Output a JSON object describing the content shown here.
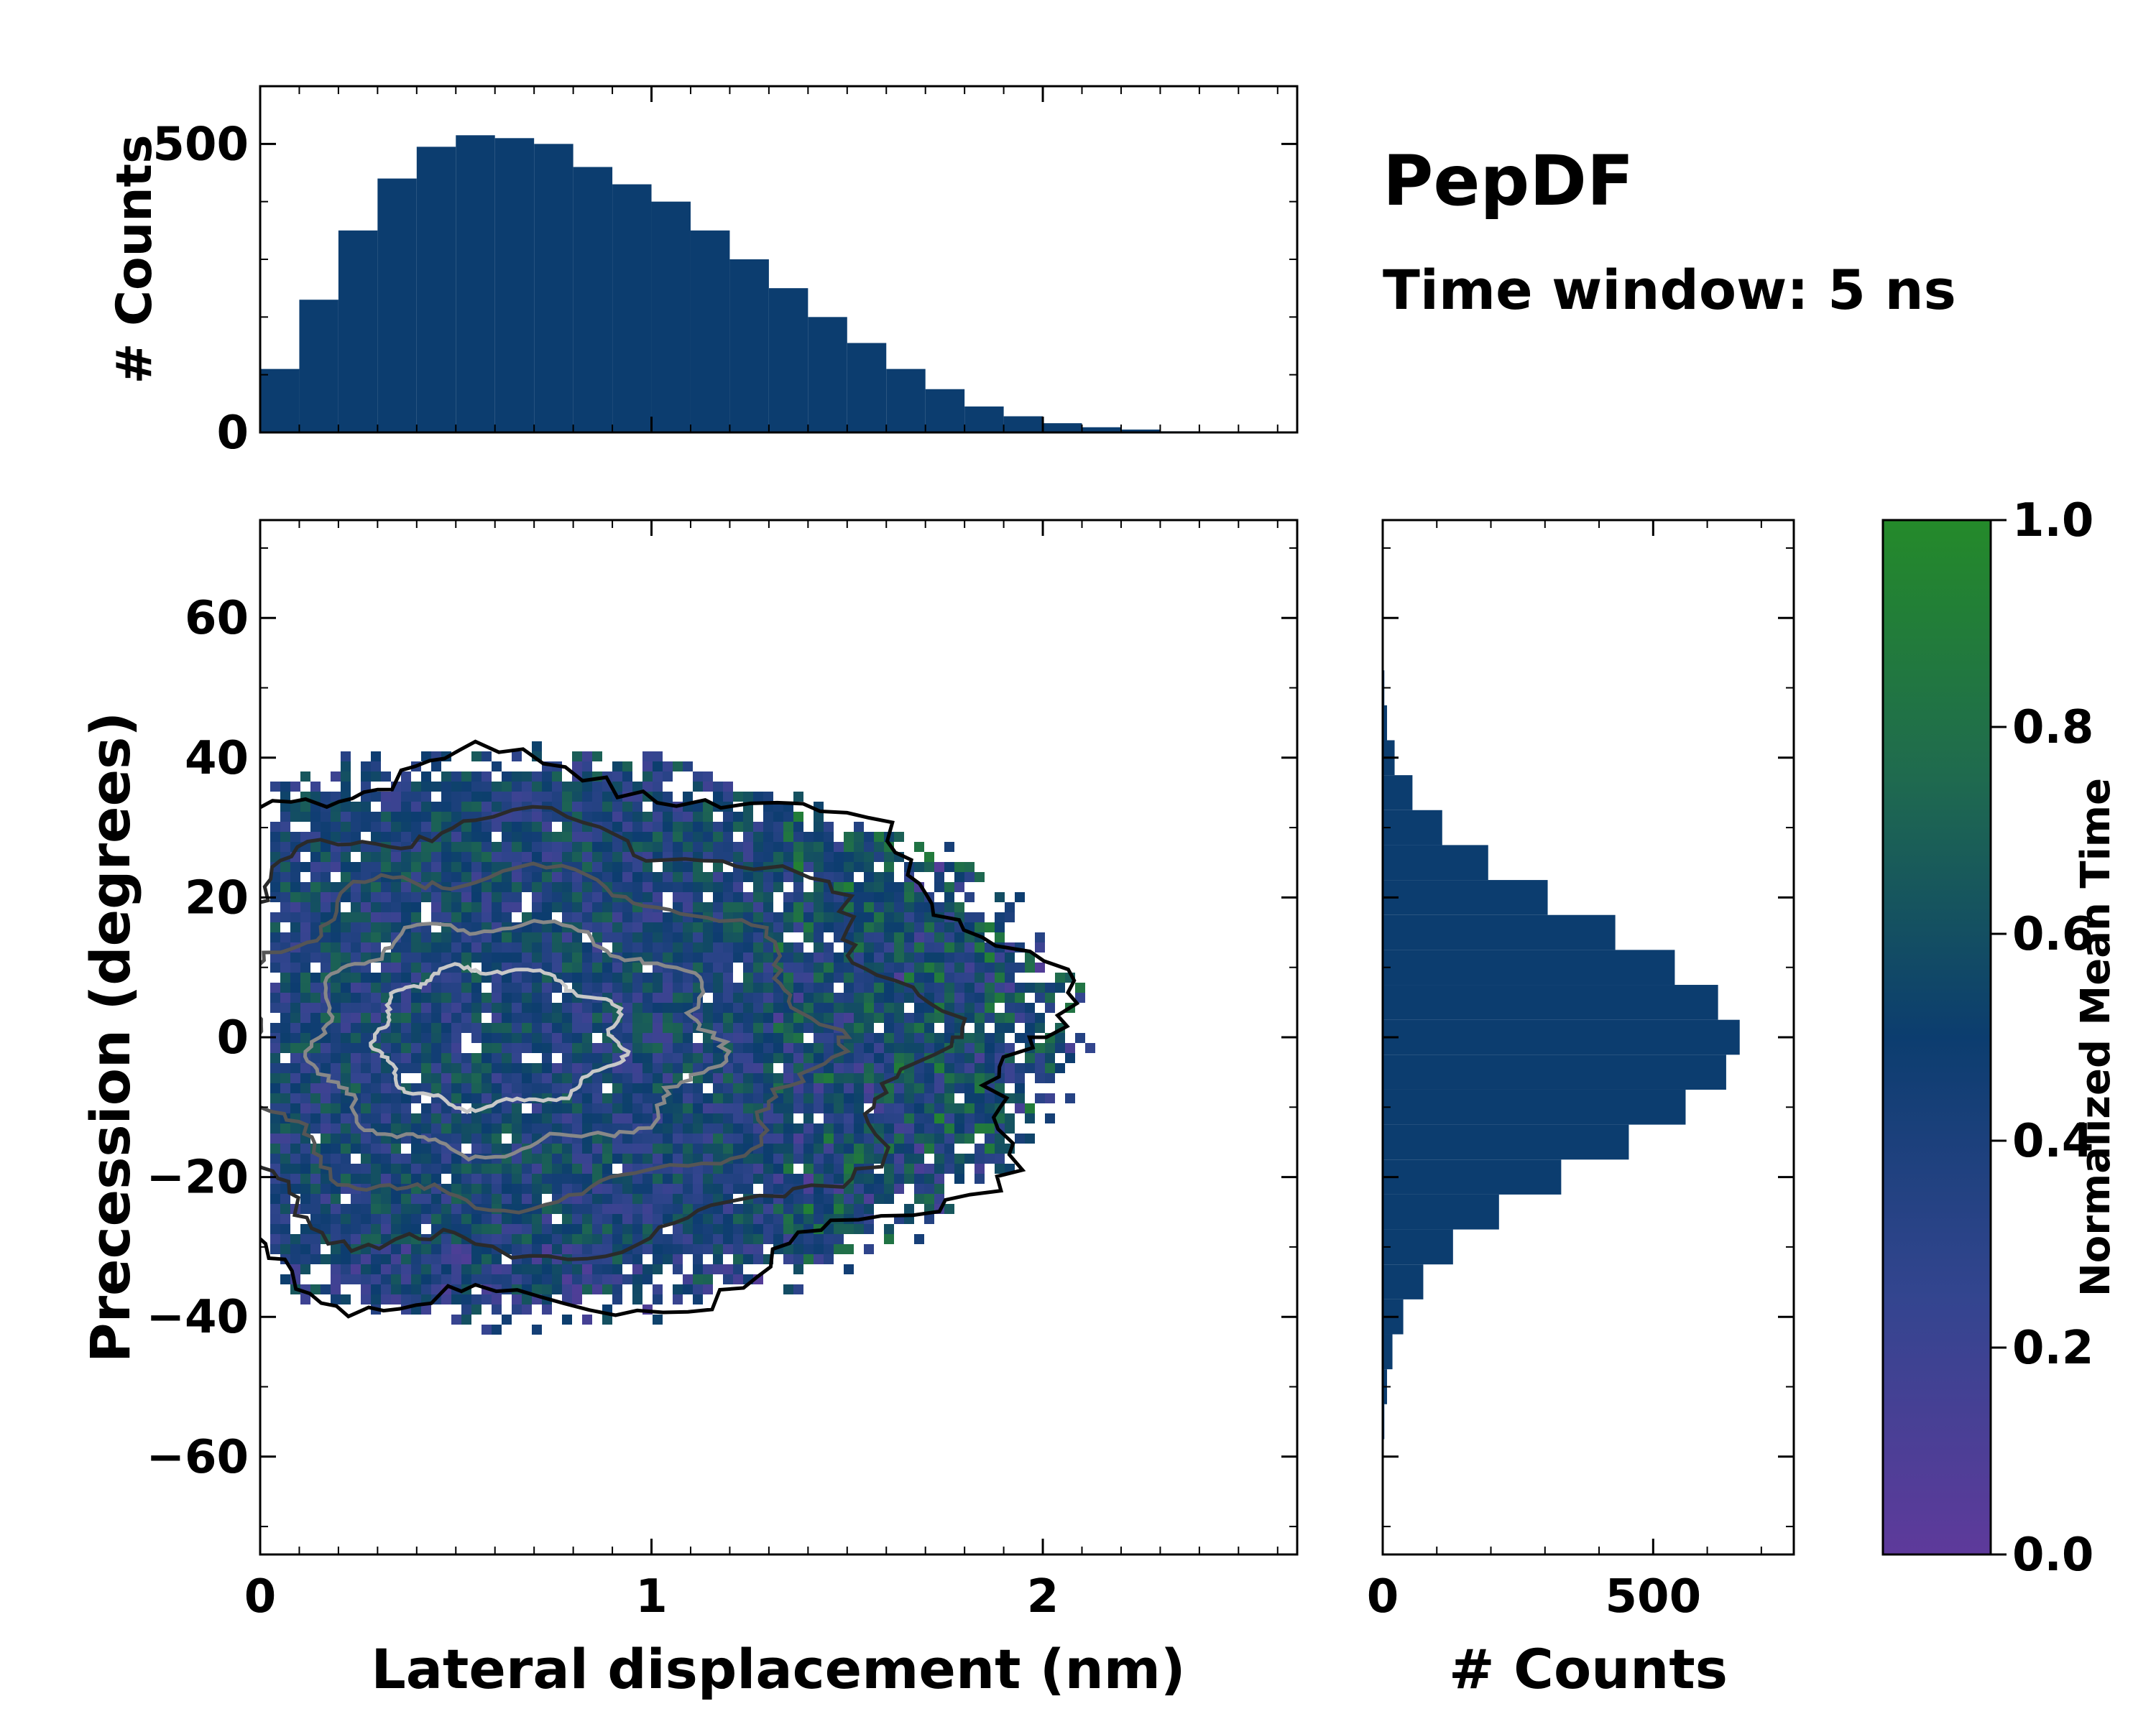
{
  "title": "PepDF",
  "subtitle": "Time window: 5 ns",
  "chart_data": [
    {
      "type": "heatmap",
      "name": "joint-distribution",
      "xlabel": "Lateral displacement (nm)",
      "ylabel": "Precession (degrees)",
      "xlim": [
        0,
        2.65
      ],
      "ylim": [
        -74,
        74
      ],
      "xticks": [
        0,
        1,
        2
      ],
      "xtick_labels": [
        "0",
        "1",
        "2"
      ],
      "yticks": [
        -60,
        -40,
        -20,
        0,
        20,
        40,
        60
      ],
      "ytick_labels": [
        "−60",
        "−40",
        "−20",
        "0",
        "20",
        "40",
        "60"
      ],
      "colorbar": {
        "label": "Normalized Mean Time",
        "range": [
          0.0,
          1.0
        ],
        "ticks": [
          0.0,
          0.2,
          0.4,
          0.6,
          0.8,
          1.0
        ],
        "tick_labels": [
          "0.0",
          "0.2",
          "0.4",
          "0.6",
          "0.8",
          "1.0"
        ],
        "colors": [
          "#5e3a9b",
          "#33458f",
          "#0c3d6f",
          "#1f6a4f",
          "#248a2a"
        ]
      },
      "contours": {
        "levels": [
          "outermost",
          "low",
          "mid",
          "high",
          "peak"
        ],
        "colors": [
          "#000000",
          "#2a2a2a",
          "#555555",
          "#888888",
          "#c8c8c8"
        ]
      },
      "density_center": {
        "x": 0.55,
        "y": 0
      },
      "spread": {
        "x_sd": 0.5,
        "y_sd": 18
      }
    },
    {
      "type": "bar",
      "name": "lateral-displacement-histogram",
      "orientation": "vertical",
      "ylabel": "# Counts",
      "xlim": [
        0,
        2.65
      ],
      "ylim": [
        0,
        600
      ],
      "yticks": [
        0,
        500
      ],
      "ytick_labels": [
        "0",
        "500"
      ],
      "bin_centers": [
        0.05,
        0.15,
        0.25,
        0.35,
        0.45,
        0.55,
        0.65,
        0.75,
        0.85,
        0.95,
        1.05,
        1.15,
        1.25,
        1.35,
        1.45,
        1.55,
        1.65,
        1.75,
        1.85,
        1.95,
        2.05,
        2.15,
        2.25,
        2.35,
        2.45,
        2.55
      ],
      "values": [
        110,
        230,
        350,
        440,
        495,
        515,
        510,
        500,
        460,
        430,
        400,
        350,
        300,
        250,
        200,
        155,
        110,
        75,
        45,
        28,
        16,
        9,
        5,
        2,
        1,
        0
      ],
      "color": "#0c3d6f"
    },
    {
      "type": "bar",
      "name": "precession-histogram",
      "orientation": "horizontal",
      "xlabel": "# Counts",
      "xlim": [
        0,
        760
      ],
      "ylim": [
        -74,
        74
      ],
      "xticks": [
        0,
        500
      ],
      "xtick_labels": [
        "0",
        "500"
      ],
      "bin_centers": [
        -55,
        -50,
        -45,
        -40,
        -35,
        -30,
        -25,
        -20,
        -15,
        -10,
        -5,
        0,
        5,
        10,
        15,
        20,
        25,
        30,
        35,
        40,
        45,
        50
      ],
      "values": [
        3,
        8,
        18,
        38,
        75,
        130,
        215,
        330,
        455,
        560,
        635,
        660,
        620,
        540,
        430,
        305,
        195,
        110,
        55,
        22,
        8,
        3
      ],
      "color": "#0c3d6f"
    }
  ]
}
